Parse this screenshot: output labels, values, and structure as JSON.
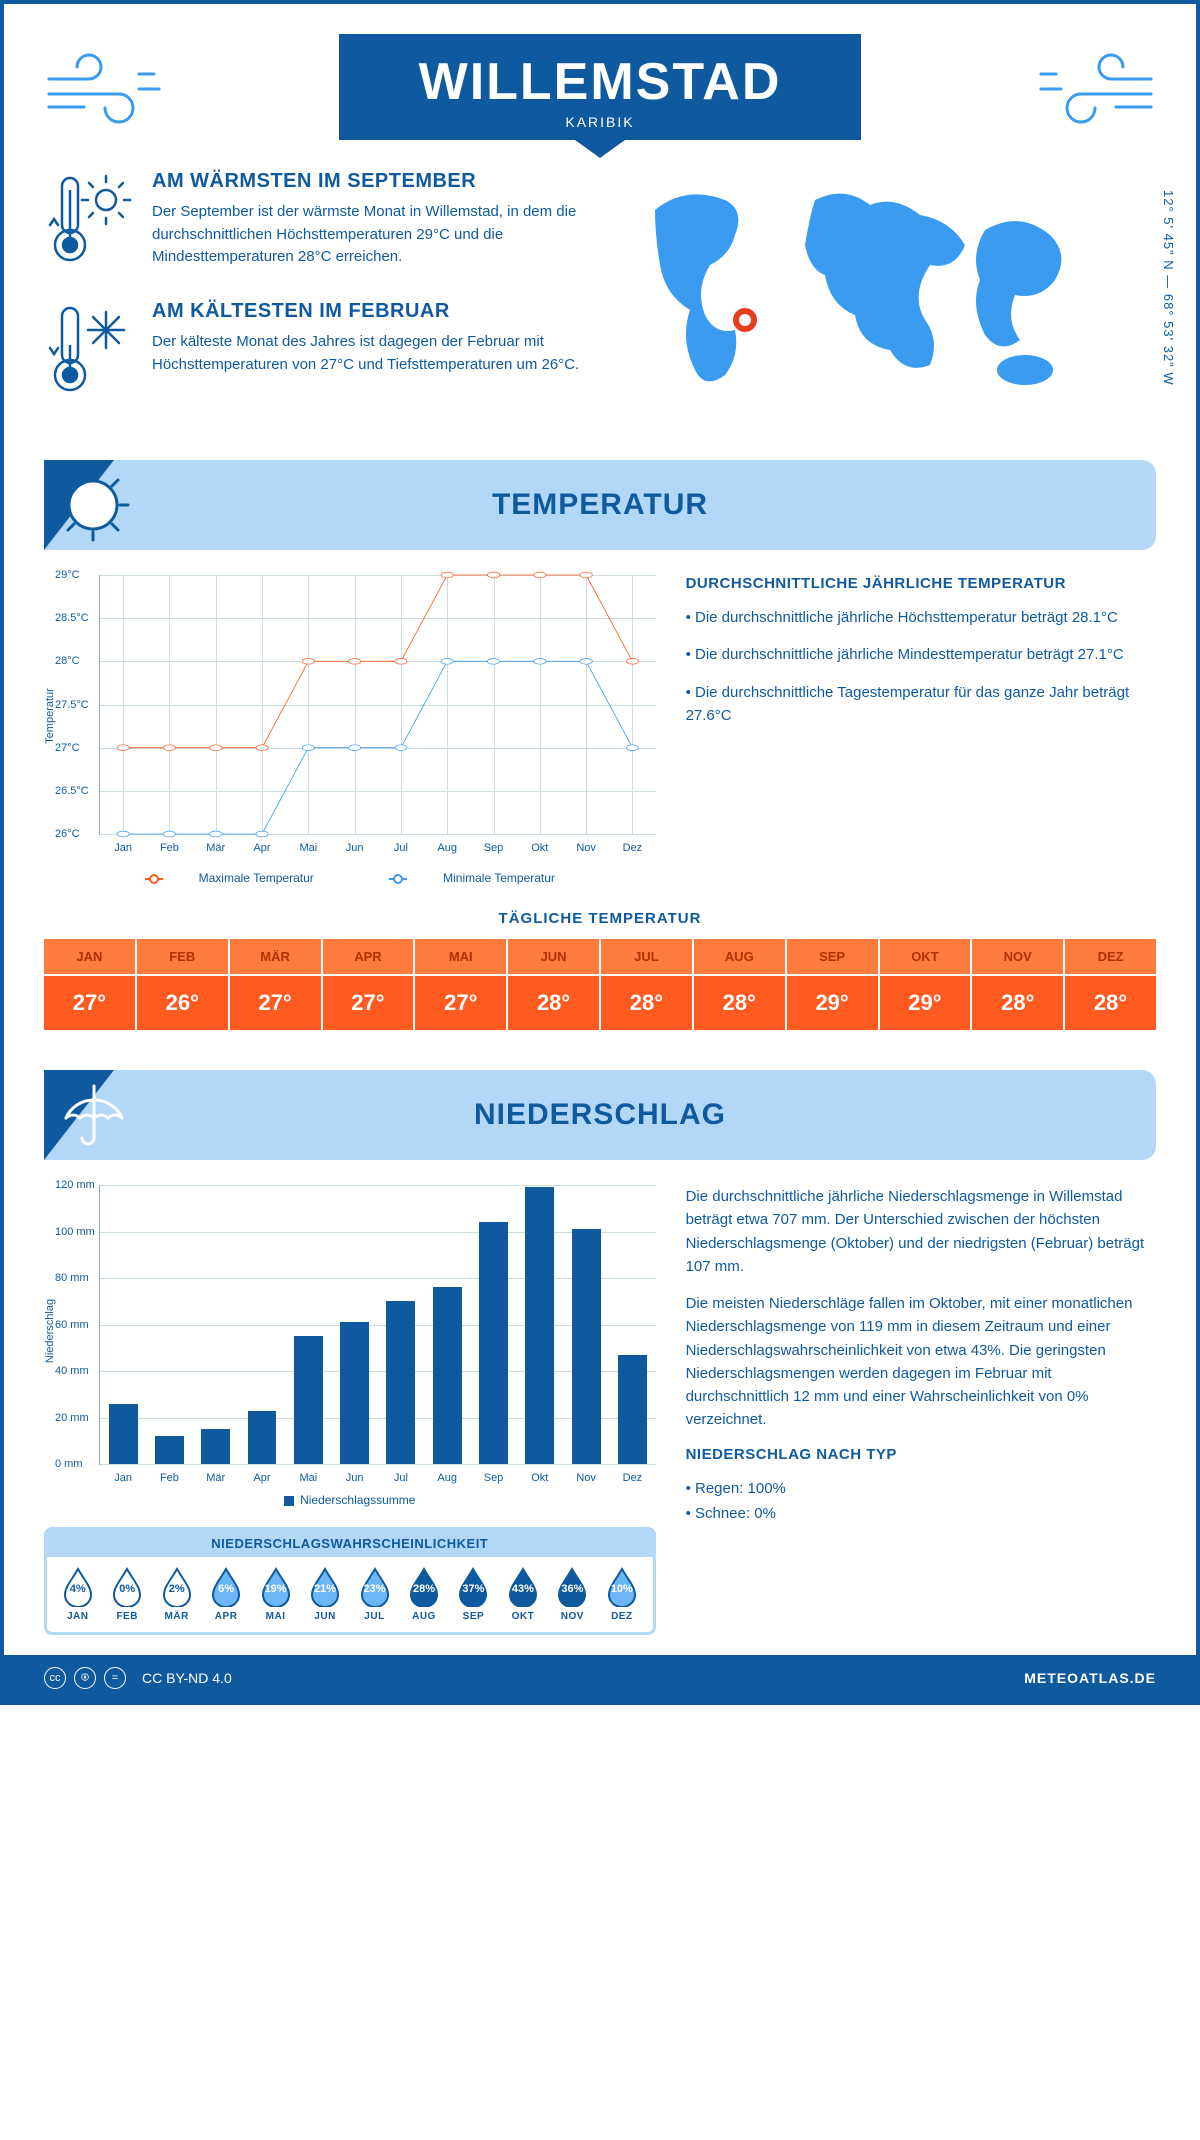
{
  "header": {
    "city": "WILLEMSTAD",
    "region": "KARIBIK",
    "coords": "12° 5' 45\" N — 68° 53' 32\" W"
  },
  "colors": {
    "primary": "#0f5a9e",
    "light": "#b3d7f7",
    "accent_max": "#ff5a1f",
    "accent_min": "#3a9bf0",
    "marker": "#e63e1d"
  },
  "intro": {
    "warm": {
      "heading": "AM WÄRMSTEN IM SEPTEMBER",
      "text": "Der September ist der wärmste Monat in Willemstad, in dem die durchschnittlichen Höchsttemperaturen 29°C und die Mindesttemperaturen 28°C erreichen."
    },
    "cold": {
      "heading": "AM KÄLTESTEN IM FEBRUAR",
      "text": "Der kälteste Monat des Jahres ist dagegen der Februar mit Höchsttemperaturen von 27°C und Tiefsttemperaturen um 26°C."
    }
  },
  "temp_section": {
    "title": "TEMPERATUR",
    "desc_heading": "DURCHSCHNITTLICHE JÄHRLICHE TEMPERATUR",
    "bullets": [
      "• Die durchschnittliche jährliche Höchsttemperatur beträgt 28.1°C",
      "• Die durchschnittliche jährliche Mindesttemperatur beträgt 27.1°C",
      "• Die durchschnittliche Tagestemperatur für das ganze Jahr beträgt 27.6°C"
    ],
    "chart": {
      "type": "line",
      "ylabel": "Temperatur",
      "months": [
        "Jan",
        "Feb",
        "Mär",
        "Apr",
        "Mai",
        "Jun",
        "Jul",
        "Aug",
        "Sep",
        "Okt",
        "Nov",
        "Dez"
      ],
      "ylim": [
        26,
        29
      ],
      "ytick_step": 0.5,
      "ytick_labels": [
        "26°C",
        "26.5°C",
        "27°C",
        "27.5°C",
        "28°C",
        "28.5°C",
        "29°C"
      ],
      "max_series": [
        27,
        27,
        27,
        27,
        28,
        28,
        28,
        29,
        29,
        29,
        29,
        28
      ],
      "min_series": [
        26,
        26,
        26,
        26,
        27,
        27,
        27,
        28,
        28,
        28,
        28,
        27
      ],
      "max_color": "#ff5a1f",
      "min_color": "#3a9bf0",
      "grid_color": "#ccdde5",
      "legend_max": "Maximale Temperatur",
      "legend_min": "Minimale Temperatur"
    },
    "daily": {
      "heading": "TÄGLICHE TEMPERATUR",
      "months": [
        "JAN",
        "FEB",
        "MÄR",
        "APR",
        "MAI",
        "JUN",
        "JUL",
        "AUG",
        "SEP",
        "OKT",
        "NOV",
        "DEZ"
      ],
      "values": [
        "27°",
        "26°",
        "27°",
        "27°",
        "27°",
        "28°",
        "28°",
        "28°",
        "29°",
        "29°",
        "28°",
        "28°"
      ],
      "header_bg": "#ff7a3d",
      "header_fg": "#b33000",
      "value_bg": "#ff5a1f",
      "value_fg": "#ffffff"
    }
  },
  "precip_section": {
    "title": "NIEDERSCHLAG",
    "chart": {
      "type": "bar",
      "ylabel": "Niederschlag",
      "months": [
        "Jan",
        "Feb",
        "Mär",
        "Apr",
        "Mai",
        "Jun",
        "Jul",
        "Aug",
        "Sep",
        "Okt",
        "Nov",
        "Dez"
      ],
      "values": [
        26,
        12,
        15,
        23,
        55,
        61,
        70,
        76,
        104,
        119,
        101,
        47
      ],
      "ylim": [
        0,
        120
      ],
      "ytick_step": 20,
      "ytick_labels": [
        "0 mm",
        "20 mm",
        "40 mm",
        "60 mm",
        "80 mm",
        "100 mm",
        "120 mm"
      ],
      "bar_color": "#0f5a9e",
      "legend": "Niederschlagssumme"
    },
    "desc": [
      "Die durchschnittliche jährliche Niederschlagsmenge in Willemstad beträgt etwa 707 mm. Der Unterschied zwischen der höchsten Niederschlagsmenge (Oktober) und der niedrigsten (Februar) beträgt 107 mm.",
      "Die meisten Niederschläge fallen im Oktober, mit einer monatlichen Niederschlagsmenge von 119 mm in diesem Zeitraum und einer Niederschlagswahrscheinlichkeit von etwa 43%. Die geringsten Niederschlagsmengen werden dagegen im Februar mit durchschnittlich 12 mm und einer Wahrscheinlichkeit von 0% verzeichnet."
    ],
    "type_heading": "NIEDERSCHLAG NACH TYP",
    "type_bullets": [
      "• Regen: 100%",
      "• Schnee: 0%"
    ],
    "prob": {
      "heading": "NIEDERSCHLAGSWAHRSCHEINLICHKEIT",
      "months": [
        "JAN",
        "FEB",
        "MÄR",
        "APR",
        "MAI",
        "JUN",
        "JUL",
        "AUG",
        "SEP",
        "OKT",
        "NOV",
        "DEZ"
      ],
      "values": [
        4,
        0,
        2,
        6,
        19,
        21,
        23,
        28,
        37,
        43,
        36,
        10
      ],
      "labels": [
        "4%",
        "0%",
        "2%",
        "6%",
        "19%",
        "21%",
        "23%",
        "28%",
        "37%",
        "43%",
        "36%",
        "10%"
      ],
      "thresholds": [
        5,
        25
      ],
      "fill_colors": {
        "empty": "#ffffff",
        "light": "#6bb6f5",
        "dark": "#0f5a9e"
      },
      "outline": "#0f5a9e"
    }
  },
  "footer": {
    "license": "CC BY-ND 4.0",
    "site": "METEOATLAS.DE"
  }
}
